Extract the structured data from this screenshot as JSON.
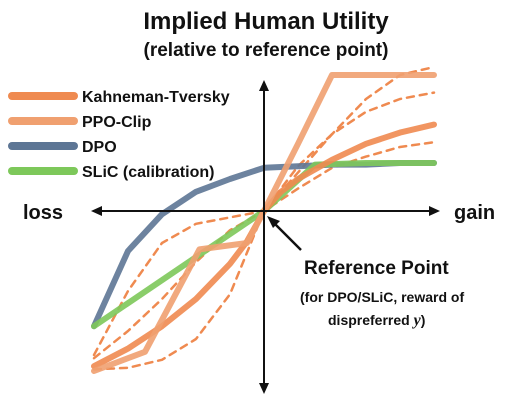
{
  "chart_data": {
    "type": "line",
    "title": "Implied Human Utility",
    "subtitle": "(relative to reference point)",
    "xlabel_left": "loss",
    "xlabel_right": "gain",
    "xlim": [
      -1,
      1
    ],
    "ylim": [
      -1,
      1
    ],
    "grid": false,
    "legend_position": "top-left",
    "annotation": {
      "title": "Reference Point",
      "line1": "(for DPO/SLiC, reward of",
      "line2": "dispreferred ",
      "var": "y",
      "line2_end": ")"
    },
    "series": [
      {
        "name": "Kahneman-Tversky",
        "color": "#ef8a50",
        "style": "solid",
        "x": [
          -1,
          -0.8,
          -0.6,
          -0.4,
          -0.2,
          -0.1,
          0,
          0.1,
          0.2,
          0.4,
          0.6,
          0.8,
          1
        ],
        "y": [
          -0.97,
          -0.86,
          -0.72,
          -0.55,
          -0.33,
          -0.19,
          0,
          0.12,
          0.2,
          0.32,
          0.42,
          0.49,
          0.54
        ]
      },
      {
        "name": "PPO-Clip",
        "color": "#f0a070",
        "style": "solid",
        "x": [
          -1,
          -0.7,
          -0.38,
          -0.1,
          0,
          0.2,
          0.4,
          0.45,
          1
        ],
        "y": [
          -1.0,
          -0.88,
          -0.24,
          -0.2,
          0,
          0.42,
          0.85,
          0.85,
          0.85
        ]
      },
      {
        "name": "DPO",
        "color": "#5d7695",
        "style": "solid",
        "x": [
          -1,
          -0.8,
          -0.6,
          -0.4,
          -0.2,
          0,
          0.2,
          0.4,
          0.6,
          0.8,
          1
        ],
        "y": [
          -0.72,
          -0.25,
          -0.02,
          0.12,
          0.2,
          0.27,
          0.28,
          0.29,
          0.29,
          0.3,
          0.3
        ]
      },
      {
        "name": "SLiC (calibration)",
        "color": "#7dc85a",
        "style": "solid",
        "x": [
          -1,
          -0.5,
          0,
          0.3,
          0.6,
          1
        ],
        "y": [
          -0.72,
          -0.36,
          0,
          0.29,
          0.3,
          0.3
        ]
      },
      {
        "color": "#ef8a50",
        "style": "dashed",
        "x": [
          -1,
          -0.8,
          -0.6,
          -0.4,
          -0.2,
          0,
          0.2,
          0.4,
          0.6,
          0.8,
          1
        ],
        "y": [
          -0.99,
          -0.98,
          -0.93,
          -0.8,
          -0.52,
          0,
          0.28,
          0.48,
          0.62,
          0.7,
          0.74
        ]
      },
      {
        "color": "#ef8a50",
        "style": "dashed",
        "x": [
          -1,
          -0.8,
          -0.6,
          -0.4,
          -0.2,
          0,
          0.2,
          0.4,
          0.6,
          0.8,
          1
        ],
        "y": [
          -0.9,
          -0.5,
          -0.2,
          -0.08,
          -0.04,
          0,
          0.24,
          0.48,
          0.7,
          0.85,
          0.9
        ]
      },
      {
        "color": "#ef8a50",
        "style": "dashed",
        "x": [
          -1,
          -0.8,
          -0.6,
          -0.4,
          -0.2,
          0,
          0.2,
          0.4,
          0.6,
          0.8,
          1
        ],
        "y": [
          -0.92,
          -0.75,
          -0.55,
          -0.32,
          -0.12,
          0,
          0.14,
          0.27,
          0.34,
          0.4,
          0.43
        ]
      }
    ]
  }
}
